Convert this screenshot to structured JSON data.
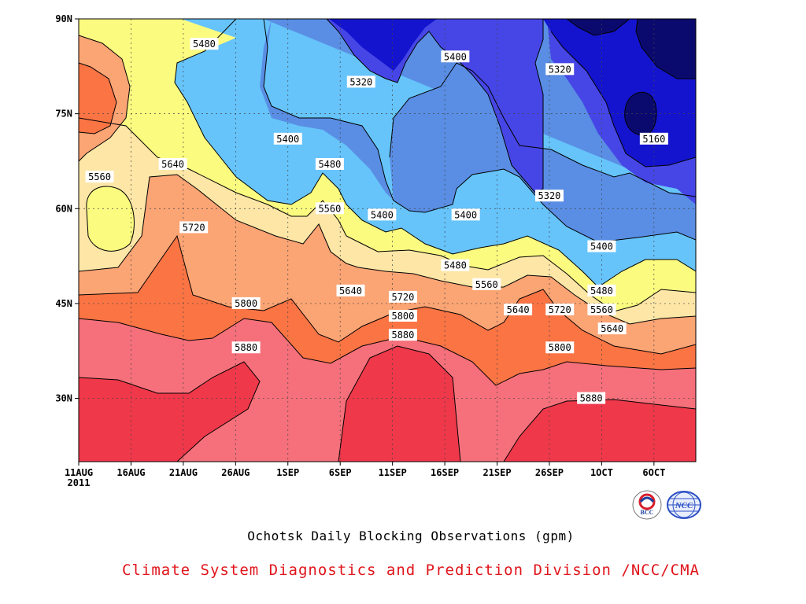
{
  "chart_data": {
    "type": "heatmap",
    "title": "Ochotsk Daily Blocking Observations (gpm)",
    "credit": "Climate System Diagnostics and Prediction Division /NCC/CMA",
    "x_ticks": [
      "11AUG",
      "16AUG",
      "21AUG",
      "26AUG",
      "1SEP",
      "6SEP",
      "11SEP",
      "16SEP",
      "21SEP",
      "26SEP",
      "1OCT",
      "6OCT"
    ],
    "x_year": "2011",
    "y_ticks": [
      "90N",
      "75N",
      "60N",
      "45N",
      "30N"
    ],
    "xlim": [
      "2011-08-11",
      "2011-10-09"
    ],
    "ylim": [
      20,
      90
    ],
    "grid": true,
    "contour_levels": [
      5160,
      5240,
      5320,
      5400,
      5480,
      5560,
      5640,
      5720,
      5800,
      5880
    ],
    "contour_labels": [
      {
        "text": "5480",
        "date": "2011-08-23",
        "lat": 86
      },
      {
        "text": "5320",
        "date": "2011-09-07",
        "lat": 80
      },
      {
        "text": "5400",
        "date": "2011-09-16",
        "lat": 84
      },
      {
        "text": "5320",
        "date": "2011-09-26",
        "lat": 82
      },
      {
        "text": "5400",
        "date": "2011-08-31",
        "lat": 71
      },
      {
        "text": "5160",
        "date": "2011-10-05",
        "lat": 71
      },
      {
        "text": "5560",
        "date": "2011-08-13",
        "lat": 65
      },
      {
        "text": "5640",
        "date": "2011-08-20",
        "lat": 67
      },
      {
        "text": "5480",
        "date": "2011-09-04",
        "lat": 67
      },
      {
        "text": "5320",
        "date": "2011-09-25",
        "lat": 62
      },
      {
        "text": "5560",
        "date": "2011-09-04",
        "lat": 60
      },
      {
        "text": "5400",
        "date": "2011-09-09",
        "lat": 59
      },
      {
        "text": "5400",
        "date": "2011-09-17",
        "lat": 59
      },
      {
        "text": "5720",
        "date": "2011-08-22",
        "lat": 57
      },
      {
        "text": "5400",
        "date": "2011-09-30",
        "lat": 54
      },
      {
        "text": "5480",
        "date": "2011-09-16",
        "lat": 51
      },
      {
        "text": "5560",
        "date": "2011-09-19",
        "lat": 48
      },
      {
        "text": "5640",
        "date": "2011-09-06",
        "lat": 47
      },
      {
        "text": "5720",
        "date": "2011-09-11",
        "lat": 46
      },
      {
        "text": "5480",
        "date": "2011-09-30",
        "lat": 47
      },
      {
        "text": "5800",
        "date": "2011-08-27",
        "lat": 45
      },
      {
        "text": "5560",
        "date": "2011-09-30",
        "lat": 44
      },
      {
        "text": "5640",
        "date": "2011-09-22",
        "lat": 44
      },
      {
        "text": "5720",
        "date": "2011-09-26",
        "lat": 44
      },
      {
        "text": "5800",
        "date": "2011-09-11",
        "lat": 43
      },
      {
        "text": "5640",
        "date": "2011-10-01",
        "lat": 41
      },
      {
        "text": "5880",
        "date": "2011-08-27",
        "lat": 38
      },
      {
        "text": "5880",
        "date": "2011-09-11",
        "lat": 40
      },
      {
        "text": "5800",
        "date": "2011-09-26",
        "lat": 38
      },
      {
        "text": "5880",
        "date": "2011-09-29",
        "lat": 30
      }
    ]
  },
  "logos": {
    "bcc": {
      "text": "BCC",
      "color": "#1c3f9e"
    },
    "ncc": {
      "text": "NCC",
      "color": "#2b4fc4"
    }
  },
  "colors": {
    "credit": "#e0151c",
    "fills": [
      "#0a0a6e",
      "#1414cf",
      "#4646e6",
      "#5a8ee4",
      "#66c4fb",
      "#fbfb80",
      "#fde6a6",
      "#fba474",
      "#fb7444",
      "#f5707a",
      "#ef384a"
    ]
  }
}
